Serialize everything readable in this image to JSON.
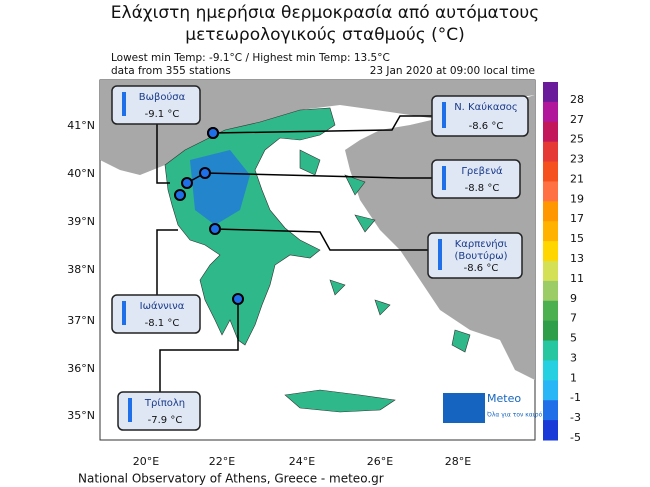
{
  "header": {
    "title_line1": "Ελάχιστη ημερήσια θερμοκρασία από αυτόματους",
    "title_line2": "μετεωρολογικούς σταθμούς (°C)",
    "extremes": "Lowest min Temp: -9.1°C / Highest min Temp: 13.5°C",
    "stations_count": "data from 355 stations",
    "timestamp": "23 Jan 2020 at 09:00 local time"
  },
  "axes": {
    "lat_labels": [
      "41°N",
      "40°N",
      "39°N",
      "38°N",
      "37°N",
      "36°N",
      "35°N"
    ],
    "lon_labels": [
      "20°E",
      "22°E",
      "24°E",
      "26°E",
      "28°E"
    ]
  },
  "colorbar": {
    "labels": [
      28,
      27,
      25,
      23,
      21,
      19,
      17,
      15,
      13,
      11,
      9,
      7,
      5,
      3,
      1,
      -1,
      -3,
      -5
    ],
    "colors": [
      "#6a1b9a",
      "#b0179b",
      "#c2185b",
      "#e53935",
      "#f4511e",
      "#ff7043",
      "#ff9800",
      "#ffb300",
      "#ffd600",
      "#d4e157",
      "#9ccc65",
      "#4caf50",
      "#2e9e4a",
      "#26c6a0",
      "#26d0e0",
      "#29b6f6",
      "#1e6fe8",
      "#1a3ad8"
    ]
  },
  "stations": [
    {
      "name": "Βωβούσα",
      "temp": "-9.1 °C"
    },
    {
      "name": "Ν. Καύκασος",
      "temp": "-8.6 °C"
    },
    {
      "name": "Γρεβενά",
      "temp": "-8.8 °C"
    },
    {
      "name": "Καρπενήσι\n(Βουτύρω)",
      "temp": "-8.6 °C"
    },
    {
      "name": "Ιωάννινα",
      "temp": "-8.1 °C"
    },
    {
      "name": "Τρίπολη",
      "temp": "-7.9 °C"
    }
  ],
  "footer": "National Observatory of Athens, Greece - meteo.gr",
  "logo": {
    "brand": "Meteo",
    "slogan": "Όλα για τον καιρό"
  }
}
